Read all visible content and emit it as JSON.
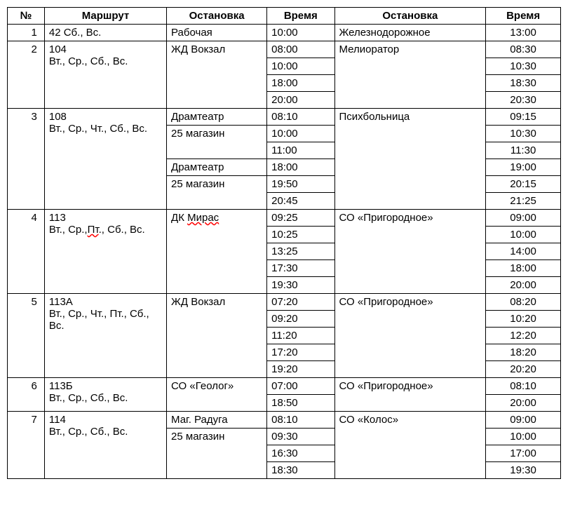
{
  "headers": {
    "num": "№",
    "route": "Маршрут",
    "stop1": "Остановка",
    "time1": "Время",
    "stop2": "Остановка",
    "time2": "Время"
  },
  "r1": {
    "num": "1",
    "route": "42 Сб., Вс.",
    "stop1": "Рабочая",
    "t1": "10:00",
    "stop2": "Железнодорожное",
    "t2": "13:00"
  },
  "r2": {
    "num": "2",
    "route_l1": "104",
    "route_l2": "Вт., Ср., Сб., Вс.",
    "stop1": "ЖД Вокзал",
    "t1a": "08:00",
    "t2a": "08:30",
    "t1b": "10:00",
    "t2b": "10:30",
    "t1c": "18:00",
    "t2c": "18:30",
    "t1d": "20:00",
    "t2d": "20:30",
    "stop2": "Мелиоратор"
  },
  "r3": {
    "num": "3",
    "route_l1": "108",
    "route_l2": "Вт., Ср., Чт., Сб., Вс.",
    "stop1a": "Драмтеатр",
    "stop1b": "25 магазин",
    "stop1c": "Драмтеатр",
    "stop1d": "25 магазин",
    "t1a": "08:10",
    "t2a": "09:15",
    "t1b": "10:00",
    "t2b": "10:30",
    "t1c": "11:00",
    "t2c": "11:30",
    "t1d": "18:00",
    "t2d": "19:00",
    "t1e": "19:50",
    "t2e": "20:15",
    "t1f": "20:45",
    "t2f": "21:25",
    "stop2": "Психбольница"
  },
  "r4": {
    "num": "4",
    "route_pre": "113",
    "route_l2a": "Вт., Ср.,",
    "route_l2b": "Пт",
    "route_l2c": "., Сб., Вс.",
    "stop1": "ДК ",
    "stop1b": "Мирас",
    "t1a": "09:25",
    "t2a": "09:00",
    "t1b": "10:25",
    "t2b": "10:00",
    "t1c": "13:25",
    "t2c": "14:00",
    "t1d": "17:30",
    "t2d": "18:00",
    "t1e": "19:30",
    "t2e": "20:00",
    "stop2": "СО «Пригородное»"
  },
  "r5": {
    "num": "5",
    "route_l1": "113А",
    "route_l2": "Вт., Ср., Чт., Пт., Сб., Вс.",
    "stop1": "ЖД Вокзал",
    "t1a": "07:20",
    "t2a": "08:20",
    "t1b": "09:20",
    "t2b": "10:20",
    "t1c": "11:20",
    "t2c": "12:20",
    "t1d": "17:20",
    "t2d": "18:20",
    "t1e": "19:20",
    "t2e": "20:20",
    "stop2": "СО «Пригородное»"
  },
  "r6": {
    "num": "6",
    "route_l1": "113Б",
    "route_l2": "Вт., Ср., Сб., Вс.",
    "stop1": "СО «Геолог»",
    "t1a": "07:00",
    "t2a": "08:10",
    "t1b": "18:50",
    "t2b": "20:00",
    "stop2": "СО «Пригородное»"
  },
  "r7": {
    "num": "7",
    "route_l1": "114",
    "route_l2": "Вт., Ср., Сб., Вс.",
    "stop1a": "Маг. Радуга",
    "stop1b": "25 магазин",
    "t1a": "08:10",
    "t2a": "09:00",
    "t1b": "09:30",
    "t2b": "10:00",
    "t1c": "16:30",
    "t2c": "17:00",
    "t1d": "18:30",
    "t2d": "19:30",
    "stop2": "СО «Колос»"
  }
}
